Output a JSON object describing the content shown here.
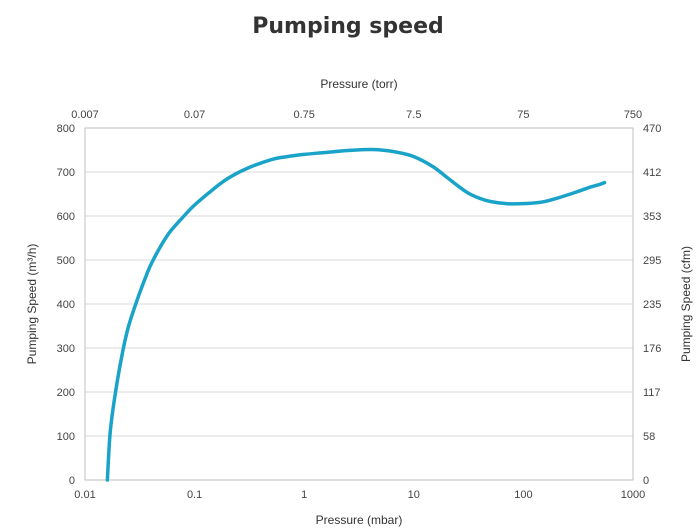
{
  "chart_data": {
    "type": "line",
    "title": "Pumping speed",
    "xlabel": "Pressure (mbar)",
    "x_scale": "log",
    "xlim": [
      0.01,
      1000
    ],
    "x_ticks": [
      "0.01",
      "0.1",
      "1",
      "10",
      "100",
      "1000"
    ],
    "x2label": "Pressure (torr)",
    "x2_ticks": [
      "0.007",
      "0.07",
      "0.75",
      "7.5",
      "75",
      "750"
    ],
    "ylabel": "Pumping Speed (m³/h)",
    "ylim": [
      0,
      800
    ],
    "y_ticks": [
      "0",
      "100",
      "200",
      "300",
      "400",
      "500",
      "600",
      "700",
      "800"
    ],
    "y2label": "Pumping Speed (cfm)",
    "y2_ticks": [
      "0",
      "58",
      "117",
      "176",
      "235",
      "295",
      "353",
      "412",
      "470"
    ],
    "grid": "horizontal",
    "line_color": "#1aa3c8",
    "series": [
      {
        "x": [
          0.016,
          0.017,
          0.019,
          0.022,
          0.025,
          0.03,
          0.035,
          0.04,
          0.05,
          0.06,
          0.08,
          0.1,
          0.15,
          0.2,
          0.3,
          0.5,
          0.7,
          1,
          1.5,
          2,
          3,
          4,
          5,
          7,
          10,
          15,
          20,
          30,
          40,
          50,
          70,
          100,
          150,
          200,
          300,
          400,
          500,
          550
        ],
        "y": [
          0,
          110,
          200,
          290,
          350,
          410,
          455,
          490,
          535,
          565,
          600,
          625,
          662,
          685,
          708,
          728,
          735,
          740,
          744,
          747,
          750,
          751,
          750,
          745,
          735,
          712,
          688,
          655,
          640,
          633,
          628,
          628,
          632,
          640,
          654,
          665,
          672,
          676
        ]
      }
    ]
  }
}
